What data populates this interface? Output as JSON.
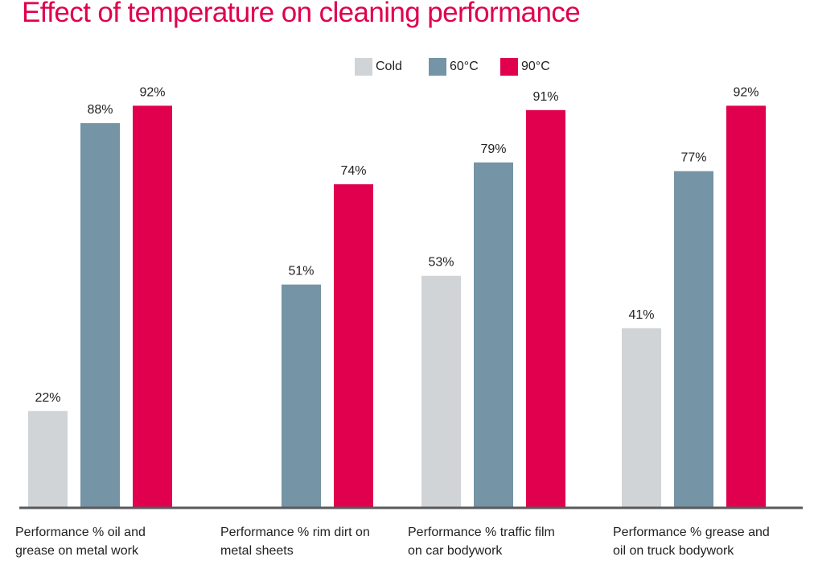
{
  "chart_data": {
    "type": "bar",
    "title": "Effect of temperature on cleaning performance",
    "title_color": "#E0004D",
    "legend_position": "top-center",
    "categories": [
      [
        "Performance % oil and",
        "grease on metal work"
      ],
      [
        "Performance % rim dirt on",
        "metal sheets"
      ],
      [
        "Performance % traffic film",
        "on car bodywork"
      ],
      [
        "Performance % grease and",
        "oil on truck bodywork"
      ]
    ],
    "series": [
      {
        "name": "Cold",
        "color": "#D1D4D7",
        "values": [
          22,
          null,
          53,
          41
        ],
        "labels": [
          "22%",
          "",
          "53%",
          "41%"
        ]
      },
      {
        "name": "60°C",
        "color": "#7594A5",
        "values": [
          88,
          51,
          79,
          77
        ],
        "labels": [
          "88%",
          "51%",
          "79%",
          "77%"
        ]
      },
      {
        "name": "90°C",
        "color": "#E0004D",
        "values": [
          92,
          74,
          91,
          92
        ],
        "labels": [
          "92%",
          "74%",
          "91%",
          "92%"
        ]
      }
    ],
    "ylim": [
      0,
      100
    ],
    "axis_color": "#58595B",
    "grid": false
  }
}
